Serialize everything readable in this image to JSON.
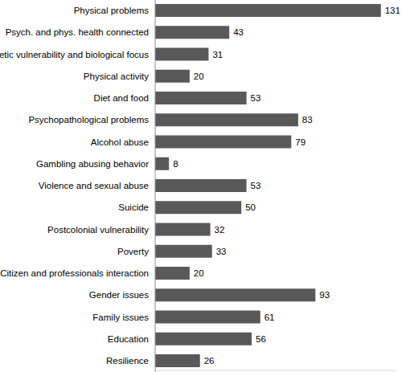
{
  "chart_data": {
    "type": "bar",
    "orientation": "horizontal",
    "categories": [
      "Physical problems",
      "Psych. and phys. health connected",
      "Genetic vulnerability and biological focus",
      "Physical activity",
      "Diet and food",
      "Psychopathological  problems",
      "Alcohol abuse",
      "Gambling abusing behavior",
      "Violence and sexual abuse",
      "Suicide",
      "Postcolonial vulnerability",
      "Poverty",
      "Citizen and professionals interaction",
      "Gender issues",
      "Family issues",
      "Education",
      "Resilience"
    ],
    "values": [
      131,
      43,
      31,
      20,
      53,
      83,
      79,
      8,
      53,
      50,
      32,
      33,
      20,
      93,
      61,
      56,
      26
    ],
    "color": "#595959",
    "xlim": [
      0,
      140
    ],
    "data_labels": true,
    "tick_labels": "y"
  }
}
